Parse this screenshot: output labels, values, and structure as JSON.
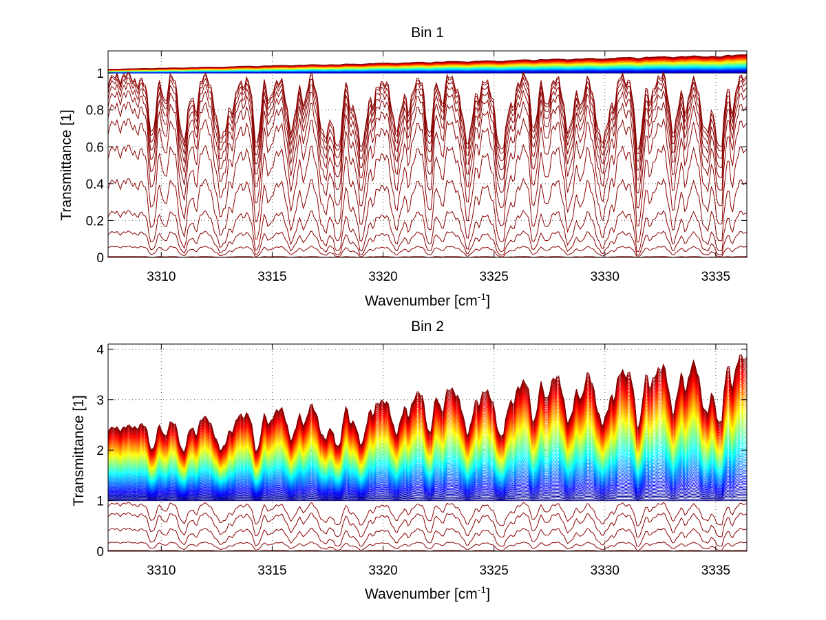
{
  "chart_data": [
    {
      "type": "line",
      "title": "Bin 1",
      "xlabel": "Wavenumber [cm",
      "xlabel_sup": "-1",
      "xlabel_close": "]",
      "ylabel": "Transmittance [1]",
      "xlim": [
        3307.6,
        3336.4
      ],
      "ylim": [
        0,
        1.12
      ],
      "xticks": [
        3310,
        3315,
        3320,
        3325,
        3330,
        3335
      ],
      "xtick_labels": [
        "3310",
        "3315",
        "3320",
        "3325",
        "3330",
        "3335"
      ],
      "yticks": [
        0,
        0.2,
        0.4,
        0.6,
        0.8,
        1
      ],
      "ytick_labels": [
        "0",
        "0.2",
        "0.4",
        "0.6",
        "0.8",
        "1"
      ],
      "grid": true,
      "colormap": "jet",
      "absorption_lines": [
        3309.6,
        3311.0,
        3312.7,
        3314.3,
        3315.9,
        3317.4,
        3318.0,
        3319.0,
        3320.6,
        3322.1,
        3323.8,
        3325.3,
        3326.8,
        3328.4,
        3329.9,
        3331.5,
        3333.1,
        3334.6,
        3335.2
      ],
      "series_levels_low": [
        0.005,
        0.06,
        0.14,
        0.25,
        0.42,
        0.6,
        0.74,
        0.83,
        0.89,
        0.93,
        0.96,
        0.98,
        0.99
      ],
      "saturated_band": {
        "bottom": 1.0,
        "top_start": 1.02,
        "top_end": 1.1,
        "count": 45
      }
    },
    {
      "type": "line",
      "title": "Bin 2",
      "xlabel": "Wavenumber [cm",
      "xlabel_sup": "-1",
      "xlabel_close": "]",
      "ylabel": "Transmittance [1]",
      "xlim": [
        3307.6,
        3336.4
      ],
      "ylim": [
        0,
        4.1
      ],
      "xticks": [
        3310,
        3315,
        3320,
        3325,
        3330,
        3335
      ],
      "xtick_labels": [
        "3310",
        "3315",
        "3320",
        "3325",
        "3330",
        "3335"
      ],
      "yticks": [
        0,
        1,
        2,
        3,
        4
      ],
      "ytick_labels": [
        "0",
        "1",
        "2",
        "3",
        "4"
      ],
      "grid": true,
      "colormap": "jet",
      "absorption_lines": [
        3309.6,
        3311.0,
        3312.7,
        3314.3,
        3315.9,
        3317.4,
        3318.0,
        3319.0,
        3320.6,
        3322.1,
        3323.8,
        3325.3,
        3326.8,
        3328.4,
        3329.9,
        3331.5,
        3333.1,
        3334.6,
        3335.2
      ],
      "series_levels_low": [
        0.02,
        0.18,
        0.45,
        0.75,
        0.95
      ],
      "saturated_band": {
        "bottom": 1.0,
        "top_start": 2.45,
        "top_end": 3.9,
        "count": 90
      }
    }
  ]
}
